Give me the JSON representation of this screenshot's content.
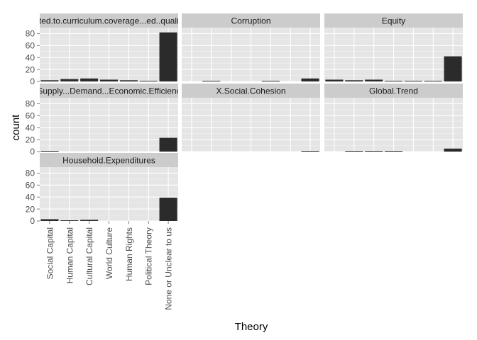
{
  "chart_data": {
    "type": "bar",
    "xlabel": "Theory",
    "ylabel": "count",
    "ylim": [
      0,
      90
    ],
    "y_ticks": [
      0,
      20,
      40,
      60,
      80
    ],
    "grid": true,
    "categories": [
      "Social Capital",
      "Human Capital",
      "Cultural Capital",
      "World Culture",
      "Human Rights",
      "Political Theory",
      "None or Unclear to us"
    ],
    "facets": [
      {
        "label": "Related.to.curriculum.coverage...ed..quality...e",
        "values": [
          2,
          4,
          5,
          3,
          2,
          1,
          82
        ]
      },
      {
        "label": "Corruption",
        "values": [
          0,
          1,
          0,
          0,
          1,
          0,
          5
        ]
      },
      {
        "label": "Equity",
        "values": [
          3,
          2,
          3,
          1,
          1,
          1,
          42
        ]
      },
      {
        "label": "Supply...Demand...Economic.Efficienc",
        "values": [
          1,
          0,
          0,
          0,
          0,
          0,
          23
        ]
      },
      {
        "label": "X.Social.Cohesion",
        "values": [
          0,
          0,
          0,
          0,
          0,
          0,
          1
        ]
      },
      {
        "label": "Global.Trend",
        "values": [
          0,
          1,
          1,
          1,
          0,
          0,
          5
        ]
      },
      {
        "label": "Household.Expenditures",
        "values": [
          3,
          1,
          2,
          0,
          0,
          0,
          39
        ]
      }
    ]
  },
  "colors": {
    "panel_bg": "#e5e5e5",
    "strip_bg": "#cccccc",
    "grid": "#ffffff",
    "bar": "#2b2b2b"
  }
}
